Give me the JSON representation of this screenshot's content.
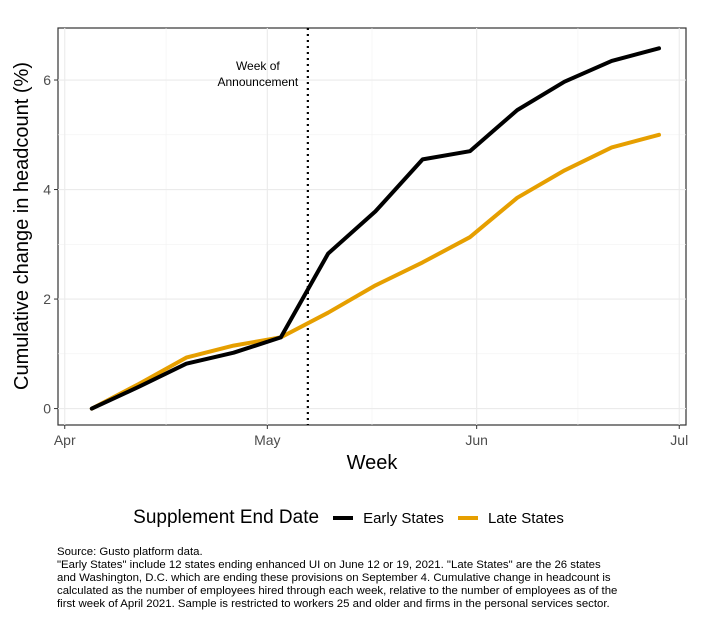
{
  "chart_data": {
    "type": "line",
    "xlabel": "Week",
    "ylabel": "Cumulative change in headcount (%)",
    "x_tick_labels": [
      "Apr",
      "May",
      "Jun",
      "Jul"
    ],
    "x_ticks": [
      "2021-04-01",
      "2021-05-01",
      "2021-06-01",
      "2021-07-01"
    ],
    "xlim": [
      "2021-03-31",
      "2021-07-02"
    ],
    "y_ticks": [
      0,
      2,
      4,
      6
    ],
    "ylim": [
      -0.3,
      6.95
    ],
    "grid": true,
    "legend_position": "bottom",
    "legend_title": "Supplement End Date",
    "annotation": {
      "lines": [
        "Week of",
        "Announcement"
      ],
      "x": "2021-05-07"
    },
    "series": [
      {
        "name": "Early States",
        "color": "#000000",
        "x": [
          "2021-04-05",
          "2021-04-12",
          "2021-04-19",
          "2021-04-26",
          "2021-05-03",
          "2021-05-10",
          "2021-05-17",
          "2021-05-24",
          "2021-05-31",
          "2021-06-07",
          "2021-06-14",
          "2021-06-21",
          "2021-06-28"
        ],
        "y": [
          0,
          0.4,
          0.82,
          1.02,
          1.3,
          2.83,
          3.6,
          4.55,
          4.7,
          5.45,
          5.97,
          6.35,
          6.58
        ]
      },
      {
        "name": "Late States",
        "color": "#e69f00",
        "x": [
          "2021-04-05",
          "2021-04-12",
          "2021-04-19",
          "2021-04-26",
          "2021-05-03",
          "2021-05-10",
          "2021-05-17",
          "2021-05-24",
          "2021-05-31",
          "2021-06-07",
          "2021-06-14",
          "2021-06-21",
          "2021-06-28"
        ],
        "y": [
          0,
          0.45,
          0.93,
          1.15,
          1.3,
          1.75,
          2.25,
          2.67,
          3.13,
          3.85,
          4.35,
          4.77,
          5.0
        ]
      }
    ]
  },
  "caption_lines": [
    "Source: Gusto platform data.",
    "\"Early States\" include 12 states ending enhanced UI on June 12 or 19, 2021. \"Late States\" are the 26 states",
    "and Washington, D.C. which are ending these provisions on September 4. Cumulative change in headcount is",
    "calculated as the number of employees hired through each week, relative to the number of employees as of the",
    "first week of April 2021. Sample is restricted to workers 25 and older and firms in the personal services sector."
  ]
}
